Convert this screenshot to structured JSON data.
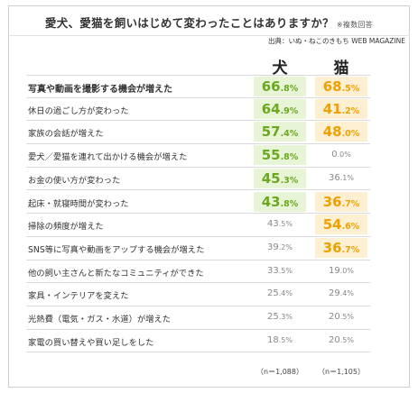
{
  "header": {
    "title": "愛犬、愛猫を飼いはじめて変わったことはありますか？",
    "note": "※複数回答",
    "source": "出典：いぬ・ねこのきもち WEB MAGAZINE"
  },
  "columns": {
    "dog": "犬",
    "cat": "猫"
  },
  "colors": {
    "dog_highlight": "#6aa820",
    "cat_highlight": "#f0a000",
    "dog_fill": "#e8f4d6",
    "cat_fill": "#fcefd2",
    "normal_text": "#888888"
  },
  "footer": {
    "dog_n": "（n＝1,088）",
    "cat_n": "（n＝1,105）"
  },
  "chart_data": {
    "type": "table",
    "title": "愛犬、愛猫を飼いはじめて変わったことはありますか？",
    "unit": "%",
    "series": [
      {
        "name": "犬"
      },
      {
        "name": "猫"
      }
    ],
    "rows": [
      {
        "label": "写真や動画を撮影する機会が増えた",
        "dog": 66.8,
        "cat": 68.5,
        "dog_hi": true,
        "cat_hi": true,
        "bold": true
      },
      {
        "label": "休日の過ごし方が変わった",
        "dog": 64.9,
        "cat": 41.2,
        "dog_hi": true,
        "cat_hi": true
      },
      {
        "label": "家族の会話が増えた",
        "dog": 57.4,
        "cat": 48.0,
        "dog_hi": true,
        "cat_hi": true
      },
      {
        "label": "愛犬／愛猫を連れて出かける機会が増えた",
        "dog": 55.8,
        "cat": 0.0,
        "dog_hi": true,
        "cat_hi": false
      },
      {
        "label": "お金の使い方が変わった",
        "dog": 45.3,
        "cat": 36.1,
        "dog_hi": true,
        "cat_hi": false
      },
      {
        "label": "起床・就寝時間が変わった",
        "dog": 43.8,
        "cat": 36.7,
        "dog_hi": true,
        "cat_hi": true
      },
      {
        "label": "掃除の頻度が増えた",
        "dog": 43.5,
        "cat": 54.6,
        "dog_hi": false,
        "cat_hi": true
      },
      {
        "label": "SNS等に写真や動画をアップする機会が増えた",
        "dog": 39.2,
        "cat": 36.7,
        "dog_hi": false,
        "cat_hi": true
      },
      {
        "label": "他の飼い主さんと新たなコミュニティができた",
        "dog": 33.5,
        "cat": 19.0,
        "dog_hi": false,
        "cat_hi": false
      },
      {
        "label": "家具・インテリアを変えた",
        "dog": 25.4,
        "cat": 29.4,
        "dog_hi": false,
        "cat_hi": false
      },
      {
        "label": "光熱費（電気・ガス・水道）が増えた",
        "dog": 25.3,
        "cat": 20.5,
        "dog_hi": false,
        "cat_hi": false
      },
      {
        "label": "家電の買い替えや買い足しをした",
        "dog": 18.5,
        "cat": 20.5,
        "dog_hi": false,
        "cat_hi": false
      }
    ]
  }
}
